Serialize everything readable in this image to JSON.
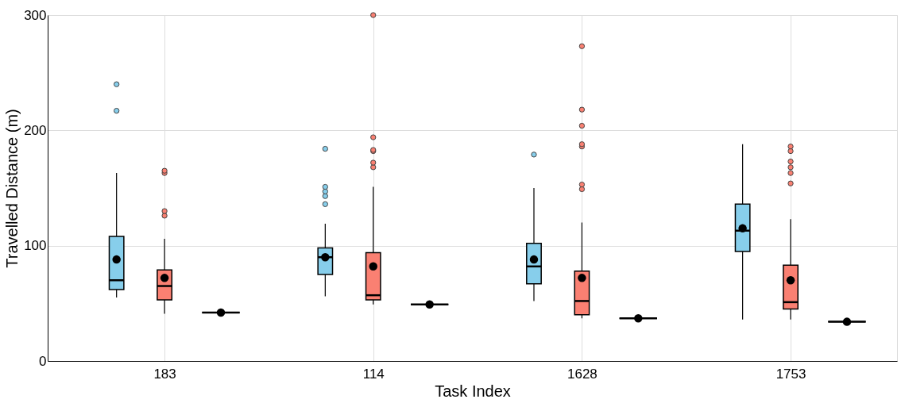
{
  "chart_data": {
    "type": "box",
    "xlabel": "Task Index",
    "ylabel": "Travelled Distance (m)",
    "categories": [
      "183",
      "114",
      "1628",
      "1753"
    ],
    "ylim": [
      0,
      300
    ],
    "yticks": [
      0,
      100,
      200,
      300
    ],
    "grid": true,
    "series": [
      {
        "color": "#87ceeb",
        "boxes": [
          {
            "low": 55,
            "q1": 62,
            "median": 70,
            "q3": 108,
            "high": 163,
            "mean": 88,
            "outliers": [
              217,
              240
            ]
          },
          {
            "low": 56,
            "q1": 75,
            "median": 90,
            "q3": 98,
            "high": 119,
            "mean": 90,
            "outliers": [
              136,
              143,
              147,
              151,
              184
            ]
          },
          {
            "low": 52,
            "q1": 67,
            "median": 82,
            "q3": 102,
            "high": 150,
            "mean": 88,
            "outliers": [
              179
            ]
          },
          {
            "low": 36,
            "q1": 95,
            "median": 113,
            "q3": 136,
            "high": 188,
            "mean": 115
          }
        ]
      },
      {
        "color": "#fa8072",
        "boxes": [
          {
            "low": 41,
            "q1": 53,
            "median": 65,
            "q3": 79,
            "high": 106,
            "mean": 72,
            "outliers": [
              126,
              130,
              163,
              165
            ]
          },
          {
            "low": 49,
            "q1": 53,
            "median": 57,
            "q3": 94,
            "high": 151,
            "mean": 82,
            "outliers": [
              168,
              172,
              182,
              183,
              194,
              300
            ]
          },
          {
            "low": 37,
            "q1": 40,
            "median": 52,
            "q3": 78,
            "high": 120,
            "mean": 72,
            "outliers": [
              149,
              153,
              186,
              188,
              204,
              218,
              273
            ]
          },
          {
            "low": 36,
            "q1": 45,
            "median": 51,
            "q3": 83,
            "high": 123,
            "mean": 70,
            "outliers": [
              154,
              163,
              168,
              173,
              182,
              186
            ]
          }
        ]
      },
      {
        "color": "#000000",
        "boxes": [
          {
            "low": 42,
            "q1": 42,
            "median": 42,
            "q3": 42,
            "high": 42,
            "mean": 42
          },
          {
            "low": 49,
            "q1": 49,
            "median": 49,
            "q3": 49,
            "high": 49,
            "mean": 49
          },
          {
            "low": 37,
            "q1": 37,
            "median": 37,
            "q3": 37,
            "high": 37,
            "mean": 37
          },
          {
            "low": 34,
            "q1": 34,
            "median": 34,
            "q3": 34,
            "high": 34,
            "mean": 34
          }
        ]
      }
    ]
  }
}
